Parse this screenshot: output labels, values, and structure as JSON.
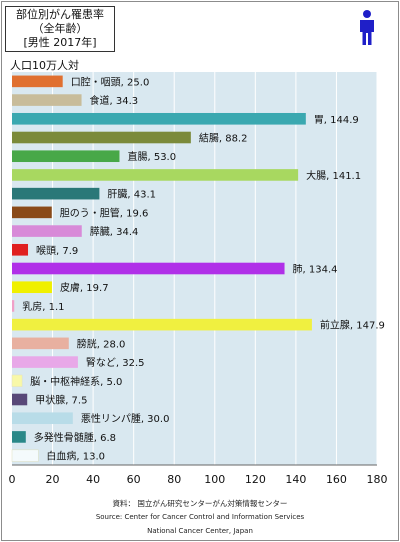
{
  "title_lines": [
    "部位別がん罹患率",
    "（全年齢）",
    "[男性  2017年]"
  ],
  "unit_label": "人口10万人対",
  "source_lines": [
    "資料：  国立がん研究センターがん対策情報センター",
    "Source: Center for Cancer Control and Information Services",
    "National Cancer Center, Japan"
  ],
  "colors": {
    "plot_background": "#d9e8f0",
    "person_icon": "#1f1fc8"
  },
  "chart_data": {
    "type": "bar",
    "orientation": "horizontal",
    "xlim": [
      0,
      180
    ],
    "x_ticks": [
      0,
      20,
      40,
      60,
      80,
      100,
      120,
      140,
      160,
      180
    ],
    "grid": true,
    "bars": [
      {
        "label": "口腔・咽頭",
        "value": 25.0,
        "value_text": "25.0",
        "color": "#e07030"
      },
      {
        "label": "食道",
        "value": 34.3,
        "value_text": "34.3",
        "color": "#c8bc9a"
      },
      {
        "label": "胃",
        "value": 144.9,
        "value_text": "144.9",
        "color": "#3aa8b0"
      },
      {
        "label": "結腸",
        "value": 88.2,
        "value_text": "88.2",
        "color": "#7b8a3a"
      },
      {
        "label": "直腸",
        "value": 53.0,
        "value_text": "53.0",
        "color": "#48a848"
      },
      {
        "label": "大腸",
        "value": 141.1,
        "value_text": "141.1",
        "color": "#a8d860"
      },
      {
        "label": "肝臓",
        "value": 43.1,
        "value_text": "43.1",
        "color": "#2a7878"
      },
      {
        "label": "胆のう・胆管",
        "value": 19.6,
        "value_text": "19.6",
        "color": "#8a4a18"
      },
      {
        "label": "膵臓",
        "value": 34.4,
        "value_text": "34.4",
        "color": "#d88ad8"
      },
      {
        "label": "喉頭",
        "value": 7.9,
        "value_text": "7.9",
        "color": "#e02020"
      },
      {
        "label": "肺",
        "value": 134.4,
        "value_text": "134.4",
        "color": "#b030e8"
      },
      {
        "label": "皮膚",
        "value": 19.7,
        "value_text": "19.7",
        "color": "#f0f000"
      },
      {
        "label": "乳房",
        "value": 1.1,
        "value_text": "1.1",
        "color": "#f0a0c8"
      },
      {
        "label": "前立腺",
        "value": 147.9,
        "value_text": "147.9",
        "color": "#f0f040"
      },
      {
        "label": "膀胱",
        "value": 28.0,
        "value_text": "28.0",
        "color": "#e8b0a0"
      },
      {
        "label": "腎など",
        "value": 32.5,
        "value_text": "32.5",
        "color": "#e8a8e8"
      },
      {
        "label": "脳・中枢神経系",
        "value": 5.0,
        "value_text": "5.0",
        "color": "#f8f8a8"
      },
      {
        "label": "甲状腺",
        "value": 7.5,
        "value_text": "7.5",
        "color": "#584878"
      },
      {
        "label": "悪性リンパ腫",
        "value": 30.0,
        "value_text": "30.0",
        "color": "#b8dce8"
      },
      {
        "label": "多発性骨髄腫",
        "value": 6.8,
        "value_text": "6.8",
        "color": "#2a8888"
      },
      {
        "label": "白血病",
        "value": 13.0,
        "value_text": "13.0",
        "color": "#f4fafc"
      }
    ]
  }
}
